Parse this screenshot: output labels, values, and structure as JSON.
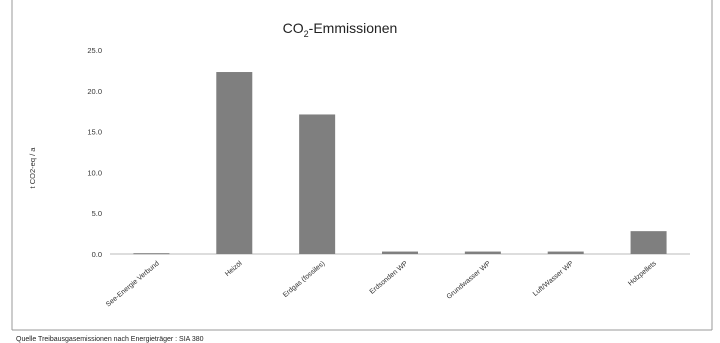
{
  "chart_data": {
    "type": "bar",
    "title_main": "CO",
    "title_sub": "2",
    "title_rest": "-Emmissionen",
    "ylabel": "t CO2-eq / a",
    "xlabel": "",
    "categories": [
      "See-Energie Verbund",
      "Heizöl",
      "Erdgas (fossiles)",
      "Erdsonden WP",
      "Grundwasser WP",
      "Luft/Wasser WP",
      "Holzpellets"
    ],
    "values": [
      0.1,
      22.3,
      17.1,
      0.3,
      0.3,
      0.3,
      2.8
    ],
    "yticks": [
      "25.0",
      "20.0",
      "15.0",
      "10.0",
      "5.0",
      "0.0"
    ],
    "ylim": [
      0,
      25
    ],
    "bar_color": "#7f7f7f",
    "grid": false,
    "legend": "none"
  },
  "source_note": "Quelle Treibausgasemissionen nach Energieträger : SIA 380"
}
